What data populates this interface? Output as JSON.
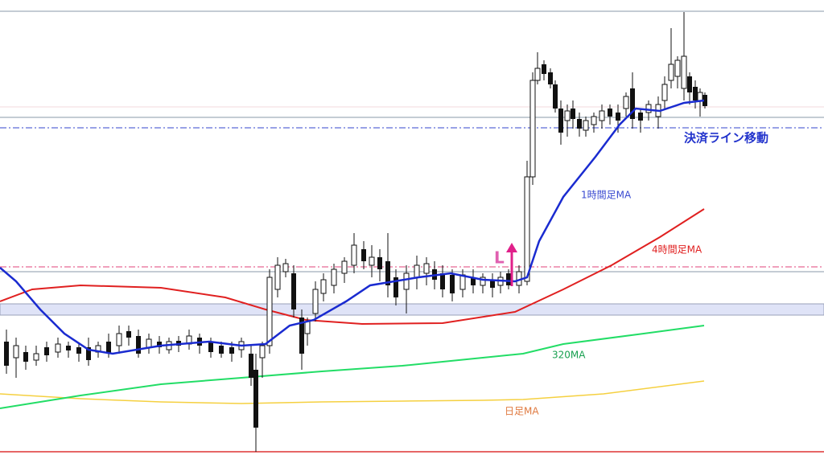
{
  "annotations": {
    "exit_line": "決済ライン移動",
    "ma_1h": "1時間足MA",
    "ma_4h": "4時間足MA",
    "ma_320": "320MA",
    "ma_daily": "日足MA",
    "entry": "L"
  }
}
